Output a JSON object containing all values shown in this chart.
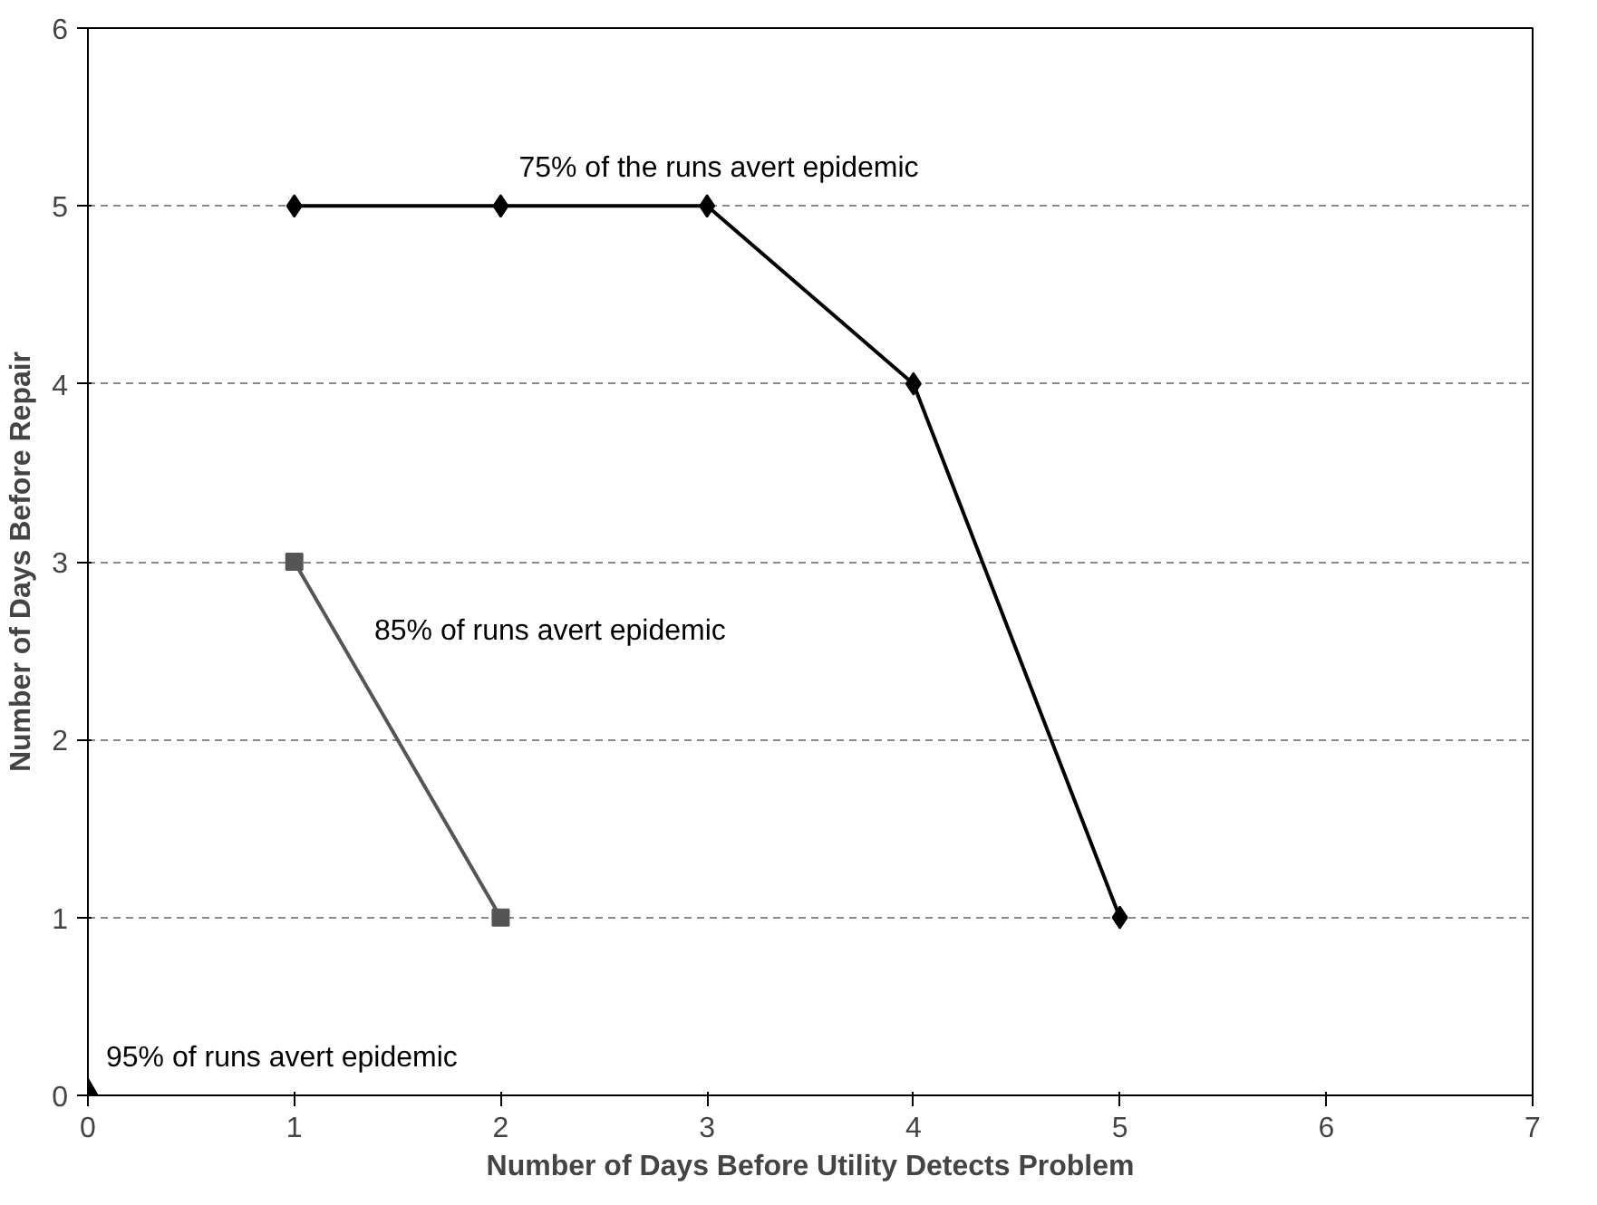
{
  "chart_data": {
    "type": "line",
    "xlabel": "Number of Days Before Utility Detects Problem",
    "ylabel": "Number of Days Before Repair",
    "xlim": [
      0,
      7
    ],
    "ylim": [
      0,
      6
    ],
    "xticks": [
      0,
      1,
      2,
      3,
      4,
      5,
      6,
      7
    ],
    "yticks": [
      0,
      1,
      2,
      3,
      4,
      5,
      6
    ],
    "grid": "y",
    "line_style": "solid",
    "series": [
      {
        "x": [
          1,
          2,
          3,
          4,
          5
        ],
        "values": [
          5,
          5,
          5,
          4,
          1
        ],
        "color": "#000000",
        "marker": "diamond"
      },
      {
        "x": [
          1,
          2
        ],
        "values": [
          3,
          1
        ],
        "color": "#555555",
        "marker": "square"
      },
      {
        "x": [
          0
        ],
        "values": [
          0
        ],
        "color": "#000000",
        "marker": "triangle"
      }
    ],
    "annotations": [
      {
        "text": "75% of the runs avert epidemic",
        "x": 2,
        "y": 5
      },
      {
        "text": "85% of runs avert epidemic",
        "x": 1.3,
        "y": 2.4
      },
      {
        "text": "95% of runs avert epidemic",
        "x": 0,
        "y": 0
      }
    ]
  }
}
